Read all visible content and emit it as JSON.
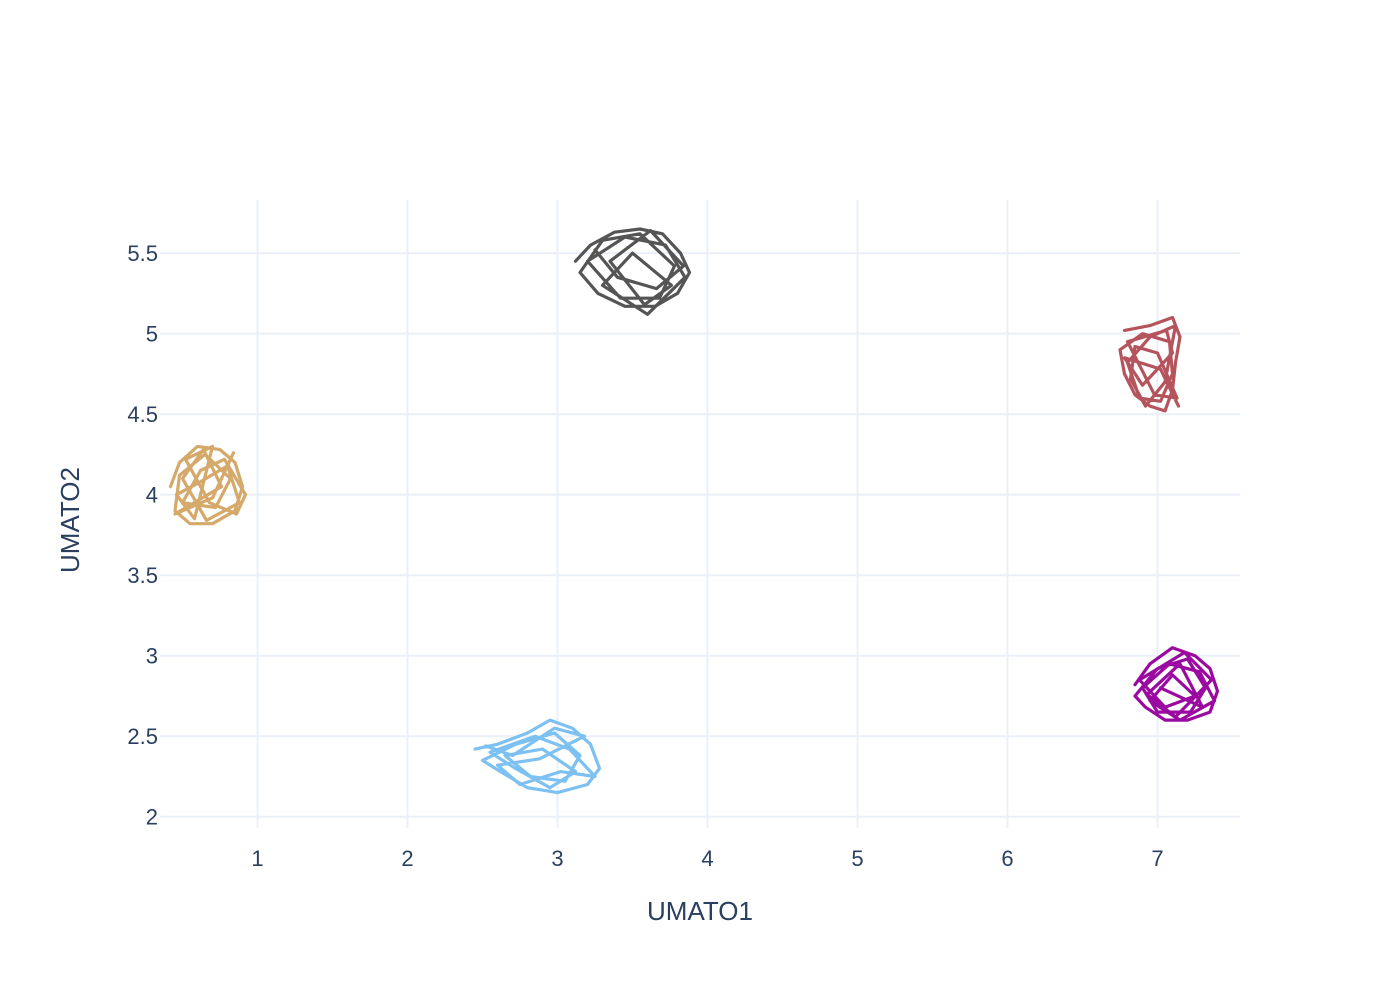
{
  "chart_data": {
    "type": "line",
    "title": "",
    "xlabel": "UMATO1",
    "ylabel": "UMATO2",
    "xlim": [
      0.35,
      7.55
    ],
    "ylim": [
      1.93,
      5.83
    ],
    "x_ticks": [
      1,
      2,
      3,
      4,
      5,
      6,
      7
    ],
    "y_ticks": [
      2,
      2.5,
      3,
      3.5,
      4,
      4.5,
      5,
      5.5
    ],
    "x_tick_labels": [
      "1",
      "2",
      "3",
      "4",
      "5",
      "6",
      "7"
    ],
    "y_tick_labels": [
      "2",
      "2.5",
      "3",
      "3.5",
      "4",
      "4.5",
      "5",
      "5.5"
    ],
    "grid": true,
    "legend": "none",
    "series": [
      {
        "color": "#d4a96a",
        "points": [
          [
            0.42,
            4.05
          ],
          [
            0.48,
            4.2
          ],
          [
            0.6,
            4.3
          ],
          [
            0.75,
            4.28
          ],
          [
            0.85,
            4.2
          ],
          [
            0.9,
            4.05
          ],
          [
            0.85,
            3.9
          ],
          [
            0.7,
            3.82
          ],
          [
            0.55,
            3.82
          ],
          [
            0.45,
            3.9
          ],
          [
            0.48,
            4.12
          ],
          [
            0.65,
            4.25
          ],
          [
            0.82,
            4.1
          ],
          [
            0.72,
            3.92
          ],
          [
            0.5,
            3.95
          ],
          [
            0.62,
            4.15
          ],
          [
            0.78,
            4.22
          ],
          [
            0.92,
            4.0
          ],
          [
            0.86,
            3.88
          ],
          [
            0.68,
            3.95
          ],
          [
            0.52,
            4.22
          ],
          [
            0.7,
            4.3
          ],
          [
            0.58,
            3.85
          ],
          [
            0.46,
            4.0
          ],
          [
            0.62,
            4.08
          ],
          [
            0.8,
            4.18
          ],
          [
            0.88,
            3.95
          ],
          [
            0.66,
            3.84
          ],
          [
            0.5,
            4.1
          ],
          [
            0.64,
            4.28
          ],
          [
            0.76,
            4.05
          ],
          [
            0.45,
            3.88
          ],
          [
            0.7,
            3.98
          ],
          [
            0.84,
            4.26
          ]
        ]
      },
      {
        "color": "#555555",
        "points": [
          [
            3.12,
            5.45
          ],
          [
            3.22,
            5.55
          ],
          [
            3.38,
            5.63
          ],
          [
            3.55,
            5.65
          ],
          [
            3.7,
            5.62
          ],
          [
            3.82,
            5.5
          ],
          [
            3.88,
            5.38
          ],
          [
            3.8,
            5.25
          ],
          [
            3.65,
            5.17
          ],
          [
            3.45,
            5.17
          ],
          [
            3.27,
            5.25
          ],
          [
            3.15,
            5.38
          ],
          [
            3.3,
            5.58
          ],
          [
            3.55,
            5.62
          ],
          [
            3.78,
            5.42
          ],
          [
            3.68,
            5.22
          ],
          [
            3.42,
            5.22
          ],
          [
            3.2,
            5.45
          ],
          [
            3.45,
            5.6
          ],
          [
            3.72,
            5.55
          ],
          [
            3.85,
            5.35
          ],
          [
            3.6,
            5.12
          ],
          [
            3.3,
            5.3
          ],
          [
            3.5,
            5.5
          ],
          [
            3.76,
            5.3
          ],
          [
            3.58,
            5.18
          ],
          [
            3.35,
            5.45
          ],
          [
            3.62,
            5.64
          ],
          [
            3.84,
            5.42
          ],
          [
            3.66,
            5.28
          ],
          [
            3.4,
            5.35
          ],
          [
            3.25,
            5.52
          ]
        ]
      },
      {
        "color": "#7cc1f2",
        "points": [
          [
            2.45,
            2.42
          ],
          [
            2.6,
            2.45
          ],
          [
            2.8,
            2.52
          ],
          [
            2.95,
            2.6
          ],
          [
            3.1,
            2.55
          ],
          [
            3.22,
            2.45
          ],
          [
            3.28,
            2.3
          ],
          [
            3.2,
            2.2
          ],
          [
            3.0,
            2.15
          ],
          [
            2.8,
            2.18
          ],
          [
            2.62,
            2.28
          ],
          [
            2.5,
            2.35
          ],
          [
            2.72,
            2.45
          ],
          [
            2.98,
            2.52
          ],
          [
            3.15,
            2.38
          ],
          [
            3.05,
            2.22
          ],
          [
            2.82,
            2.25
          ],
          [
            2.65,
            2.38
          ],
          [
            2.9,
            2.42
          ],
          [
            3.12,
            2.28
          ],
          [
            2.95,
            2.18
          ],
          [
            2.72,
            2.3
          ],
          [
            2.55,
            2.4
          ],
          [
            2.85,
            2.5
          ],
          [
            3.08,
            2.42
          ],
          [
            3.25,
            2.25
          ],
          [
            3.02,
            2.28
          ],
          [
            2.75,
            2.2
          ],
          [
            2.6,
            2.32
          ],
          [
            2.88,
            2.36
          ],
          [
            3.18,
            2.5
          ],
          [
            2.98,
            2.55
          ],
          [
            2.7,
            2.38
          ],
          [
            2.52,
            2.44
          ]
        ]
      },
      {
        "color": "#b5545c",
        "points": [
          [
            6.78,
            5.02
          ],
          [
            6.95,
            5.05
          ],
          [
            7.1,
            5.1
          ],
          [
            7.15,
            4.98
          ],
          [
            7.12,
            4.82
          ],
          [
            7.1,
            4.65
          ],
          [
            7.05,
            4.52
          ],
          [
            6.95,
            4.55
          ],
          [
            6.85,
            4.62
          ],
          [
            6.78,
            4.75
          ],
          [
            6.75,
            4.9
          ],
          [
            6.9,
            5.0
          ],
          [
            7.08,
            4.95
          ],
          [
            7.1,
            4.75
          ],
          [
            7.02,
            4.58
          ],
          [
            6.88,
            4.6
          ],
          [
            6.8,
            4.82
          ],
          [
            6.95,
            4.98
          ],
          [
            7.12,
            5.05
          ],
          [
            7.05,
            4.7
          ],
          [
            6.92,
            4.55
          ],
          [
            6.82,
            4.72
          ],
          [
            6.85,
            4.92
          ],
          [
            7.0,
            4.88
          ],
          [
            7.13,
            4.6
          ],
          [
            6.98,
            4.62
          ],
          [
            6.8,
            4.95
          ],
          [
            7.06,
            5.02
          ],
          [
            7.1,
            4.88
          ],
          [
            6.9,
            4.68
          ],
          [
            6.78,
            4.85
          ],
          [
            7.02,
            4.78
          ],
          [
            7.14,
            4.55
          ]
        ]
      },
      {
        "color": "#9a0aa0",
        "points": [
          [
            6.85,
            2.82
          ],
          [
            6.95,
            2.95
          ],
          [
            7.1,
            3.05
          ],
          [
            7.25,
            3.0
          ],
          [
            7.35,
            2.92
          ],
          [
            7.4,
            2.78
          ],
          [
            7.35,
            2.65
          ],
          [
            7.2,
            2.6
          ],
          [
            7.05,
            2.6
          ],
          [
            6.92,
            2.68
          ],
          [
            6.85,
            2.75
          ],
          [
            7.0,
            2.92
          ],
          [
            7.2,
            2.98
          ],
          [
            7.32,
            2.8
          ],
          [
            7.22,
            2.65
          ],
          [
            7.0,
            2.65
          ],
          [
            6.9,
            2.8
          ],
          [
            7.08,
            2.95
          ],
          [
            7.28,
            2.9
          ],
          [
            7.38,
            2.72
          ],
          [
            7.15,
            2.6
          ],
          [
            6.95,
            2.72
          ],
          [
            7.1,
            2.88
          ],
          [
            7.25,
            2.75
          ],
          [
            7.05,
            2.68
          ],
          [
            6.88,
            2.85
          ],
          [
            7.18,
            3.02
          ],
          [
            7.36,
            2.85
          ],
          [
            7.12,
            2.62
          ],
          [
            6.93,
            2.76
          ],
          [
            7.15,
            2.95
          ],
          [
            7.3,
            2.68
          ],
          [
            7.02,
            2.8
          ]
        ]
      }
    ]
  }
}
